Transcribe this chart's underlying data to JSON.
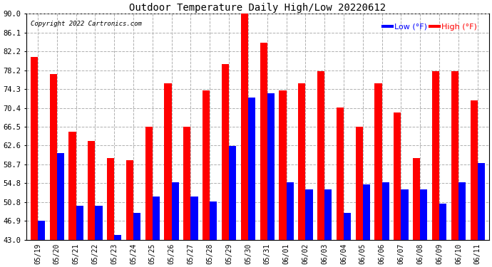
{
  "title": "Outdoor Temperature Daily High/Low 20220612",
  "copyright": "Copyright 2022 Cartronics.com",
  "legend_low": "Low",
  "legend_high": "High",
  "legend_unit": "(°F)",
  "dates": [
    "05/19",
    "05/20",
    "05/21",
    "05/22",
    "05/23",
    "05/24",
    "05/25",
    "05/26",
    "05/27",
    "05/28",
    "05/29",
    "05/30",
    "05/31",
    "06/01",
    "06/02",
    "06/03",
    "06/04",
    "06/05",
    "06/06",
    "06/07",
    "06/08",
    "06/09",
    "06/10",
    "06/11"
  ],
  "high_values": [
    81.0,
    77.5,
    65.5,
    63.5,
    60.0,
    59.5,
    66.5,
    75.5,
    66.5,
    74.0,
    79.5,
    90.0,
    84.0,
    74.0,
    75.5,
    78.0,
    70.5,
    66.5,
    75.5,
    69.5,
    60.0,
    78.0,
    78.0,
    72.0
  ],
  "low_values": [
    47.0,
    61.0,
    50.0,
    50.0,
    44.0,
    48.5,
    52.0,
    55.0,
    52.0,
    51.0,
    62.5,
    72.5,
    73.5,
    55.0,
    53.5,
    53.5,
    48.5,
    54.5,
    55.0,
    53.5,
    53.5,
    50.5,
    55.0,
    59.0
  ],
  "high_color": "#ff0000",
  "low_color": "#0000ff",
  "bg_color": "#ffffff",
  "grid_color": "#b0b0b0",
  "yticks": [
    43.0,
    46.9,
    50.8,
    54.8,
    58.7,
    62.6,
    66.5,
    70.4,
    74.3,
    78.2,
    82.2,
    86.1,
    90.0
  ],
  "ymin": 43.0,
  "ymax": 90.0,
  "bar_width": 0.38
}
